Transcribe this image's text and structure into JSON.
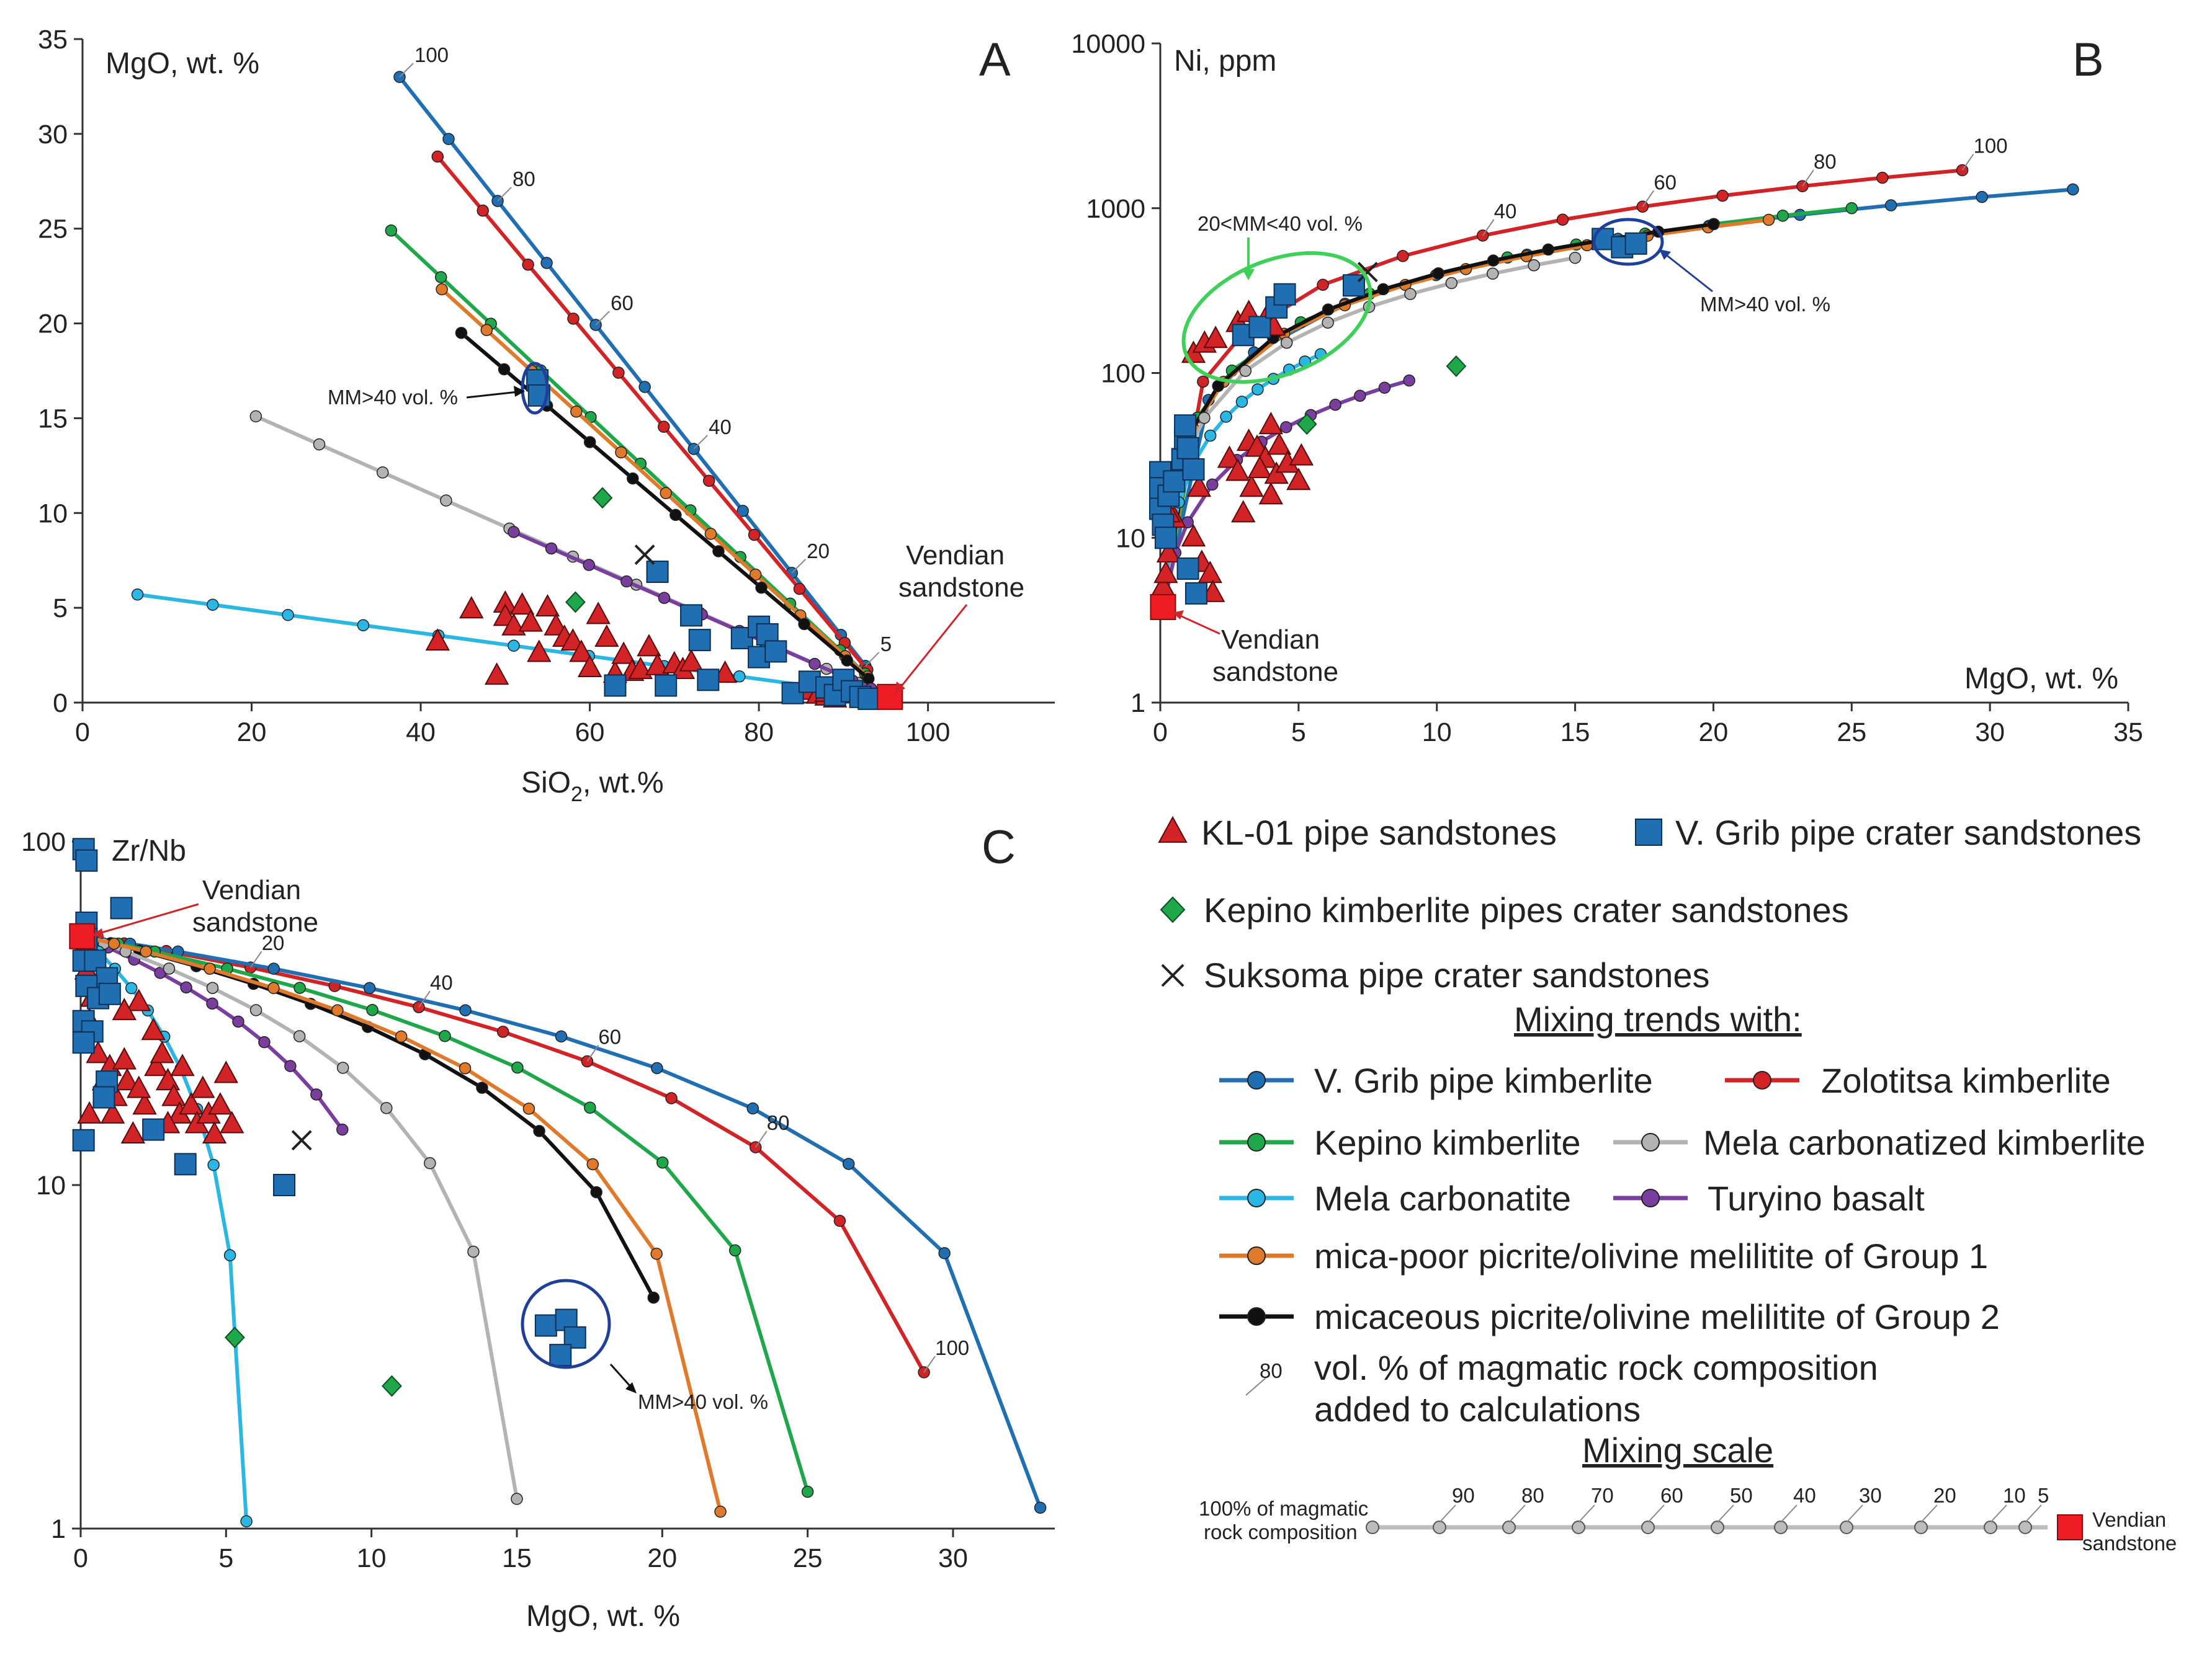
{
  "chart_data": [
    {
      "id": "A",
      "type": "line",
      "panel_letter": "A",
      "corner_label": "MgO, wt. %",
      "xlabel": "SiO",
      "xlabel_sub": "2",
      "xlabel_tail": ", wt.%",
      "xlim": [
        0,
        115
      ],
      "ylim": [
        0,
        35
      ],
      "x_ticks": [
        "0",
        "20",
        "40",
        "60",
        "80",
        "100"
      ],
      "y_ticks": [
        "0",
        "5",
        "10",
        "15",
        "20",
        "25",
        "30",
        "35"
      ],
      "annotations": {
        "mm_label": "MM>40 vol. %",
        "vendian_1": "Vendian",
        "vendian_2": "sandstone"
      },
      "percent_labels": [
        "100",
        "80",
        "60",
        "40",
        "20",
        "5"
      ],
      "series": [
        {
          "name": "V. Grib pipe kimberlite",
          "color": "#1f6fb2",
          "start": [
            37.5,
            33.0
          ]
        },
        {
          "name": "Zolotitsa kimberlite",
          "color": "#d22327",
          "start": [
            42.0,
            28.8
          ]
        },
        {
          "name": "Kepino kimberlite",
          "color": "#1fa84a",
          "start": [
            36.5,
            24.9
          ]
        },
        {
          "name": "mica-poor picrite/olivine melilitite of Group 1",
          "color": "#e07a2a",
          "start": [
            42.5,
            21.8
          ]
        },
        {
          "name": "micaceous picrite/olivine melilitite of Group 2",
          "color": "#111111",
          "start": [
            44.8,
            19.5
          ]
        },
        {
          "name": "Mela carbonatized kimberlite",
          "color": "#b3b3b3",
          "start": [
            20.5,
            15.1
          ]
        },
        {
          "name": "Turyino basalt",
          "color": "#7a3e9e",
          "start": [
            51.0,
            9.0
          ]
        },
        {
          "name": "Mela carbonatite",
          "color": "#2bb7e6",
          "start": [
            6.5,
            5.7
          ]
        }
      ],
      "end_member": [
        95.5,
        0.3
      ],
      "samples": {
        "KL-01 pipe sandstones": [
          [
            42,
            3.2
          ],
          [
            46,
            4.9
          ],
          [
            49,
            1.4
          ],
          [
            50,
            5.2
          ],
          [
            50,
            4.5
          ],
          [
            51,
            4.0
          ],
          [
            52,
            5.1
          ],
          [
            53,
            4.2
          ],
          [
            54,
            2.6
          ],
          [
            55,
            5.0
          ],
          [
            56,
            4.0
          ],
          [
            57,
            3.4
          ],
          [
            58,
            3.2
          ],
          [
            59,
            2.6
          ],
          [
            60,
            1.8
          ],
          [
            61,
            4.6
          ],
          [
            62,
            3.4
          ],
          [
            63,
            1.5
          ],
          [
            64,
            2.5
          ],
          [
            65,
            1.6
          ],
          [
            66,
            1.7
          ],
          [
            67,
            2.9
          ],
          [
            68,
            1.9
          ],
          [
            70,
            2.0
          ],
          [
            71,
            1.7
          ],
          [
            72,
            2.1
          ],
          [
            76,
            1.5
          ],
          [
            86,
            0.6
          ],
          [
            87,
            0.4
          ],
          [
            88,
            0.3
          ],
          [
            88,
            0.5
          ],
          [
            89,
            0.2
          ]
        ],
        "V. Grib pipe crater sandstones": [
          [
            53.8,
            17.0
          ],
          [
            54.0,
            16.2
          ],
          [
            68,
            6.9
          ],
          [
            72,
            4.6
          ],
          [
            73,
            3.3
          ],
          [
            78,
            3.4
          ],
          [
            80,
            2.4
          ],
          [
            80,
            4.0
          ],
          [
            81,
            3.6
          ],
          [
            82,
            2.7
          ],
          [
            63,
            0.9
          ],
          [
            69,
            0.9
          ],
          [
            74,
            1.2
          ],
          [
            84,
            0.5
          ],
          [
            86,
            1.1
          ],
          [
            88,
            0.8
          ],
          [
            89,
            0.4
          ],
          [
            90,
            1.2
          ],
          [
            91,
            0.6
          ],
          [
            92,
            0.3
          ],
          [
            93,
            0.2
          ]
        ],
        "Kepino kimberlite pipes crater sandstones": [
          [
            61.5,
            10.8
          ],
          [
            58.3,
            5.3
          ]
        ],
        "Suksoma pipe crater sandstones": [
          [
            66.5,
            7.8
          ]
        ]
      }
    },
    {
      "id": "B",
      "type": "line",
      "panel_letter": "B",
      "corner_label": "Ni, ppm",
      "xlabel": "MgO, wt. %",
      "xlim": [
        0,
        35
      ],
      "ylim": [
        1,
        10000
      ],
      "yscale": "log",
      "x_ticks": [
        "0",
        "5",
        "10",
        "15",
        "20",
        "25",
        "30",
        "35"
      ],
      "y_ticks": [
        "1",
        "10",
        "100",
        "1000",
        "10000"
      ],
      "annotations": {
        "green_label": "20<MM<40 vol. %",
        "mm_label": "MM>40 vol. %",
        "vendian_1": "Vendian",
        "vendian_2": "sandstone"
      },
      "percent_labels": [
        "40",
        "60",
        "80",
        "100"
      ],
      "series": [
        {
          "name": "Zolotitsa kimberlite",
          "color": "#d22327",
          "end": [
            29.0,
            1700
          ]
        },
        {
          "name": "V. Grib pipe kimberlite",
          "color": "#1f6fb2",
          "end": [
            33.0,
            1300
          ]
        },
        {
          "name": "Kepino kimberlite",
          "color": "#1fa84a",
          "end": [
            25.0,
            1000
          ]
        },
        {
          "name": "mica-poor picrite/olivine melilitite of Group 1",
          "color": "#e07a2a",
          "end": [
            22.0,
            850
          ]
        },
        {
          "name": "micaceous picrite/olivine melilitite of Group 2",
          "color": "#111111",
          "end": [
            20.0,
            800
          ]
        },
        {
          "name": "Mela carbonatized kimberlite",
          "color": "#b3b3b3",
          "end": [
            15.0,
            500
          ]
        },
        {
          "name": "Mela carbonatite",
          "color": "#2bb7e6",
          "end": [
            5.8,
            130
          ]
        },
        {
          "name": "Turyino basalt",
          "color": "#7a3e9e",
          "end": [
            9.0,
            90
          ]
        }
      ],
      "end_member": [
        0.1,
        3.8
      ],
      "samples": {
        "KL-01 pipe sandstones": [
          [
            0.1,
            5
          ],
          [
            0.2,
            6
          ],
          [
            0.3,
            8
          ],
          [
            0.5,
            13
          ],
          [
            0.3,
            14
          ],
          [
            1.2,
            10
          ],
          [
            1.5,
            7
          ],
          [
            1.8,
            6
          ],
          [
            1.9,
            4.6
          ],
          [
            1.2,
            130
          ],
          [
            1.6,
            150
          ],
          [
            2.0,
            160
          ],
          [
            2.8,
            200
          ],
          [
            3.2,
            230
          ],
          [
            3.8,
            210
          ],
          [
            4.1,
            190
          ],
          [
            2.5,
            30
          ],
          [
            3.2,
            38
          ],
          [
            3.5,
            35
          ],
          [
            3.8,
            30
          ],
          [
            4.0,
            48
          ],
          [
            4.3,
            36
          ],
          [
            2.8,
            25
          ],
          [
            3.3,
            20
          ],
          [
            3.6,
            26
          ],
          [
            4.2,
            24
          ],
          [
            4.6,
            28
          ],
          [
            5.0,
            22
          ],
          [
            5.1,
            31
          ],
          [
            3.0,
            14
          ],
          [
            1.4,
            20
          ],
          [
            4.0,
            18
          ]
        ],
        "V. Grib pipe crater sandstones": [
          [
            0,
            25
          ],
          [
            0,
            20
          ],
          [
            0,
            15
          ],
          [
            0.1,
            12
          ],
          [
            0.2,
            10
          ],
          [
            0.3,
            18
          ],
          [
            0.5,
            22
          ],
          [
            0.8,
            30
          ],
          [
            0.9,
            40
          ],
          [
            0.9,
            48
          ],
          [
            1.0,
            35
          ],
          [
            1.2,
            26
          ],
          [
            1.0,
            6.5
          ],
          [
            1.3,
            4.6
          ],
          [
            3.0,
            170
          ],
          [
            3.6,
            190
          ],
          [
            4.2,
            250
          ],
          [
            4.5,
            300
          ],
          [
            7.0,
            340
          ],
          [
            16.0,
            650
          ],
          [
            16.7,
            580
          ],
          [
            17.2,
            610
          ]
        ],
        "Kepino kimberlite pipes crater sandstones": [
          [
            10.7,
            110
          ],
          [
            5.3,
            49
          ]
        ],
        "Suksoma pipe crater sandstones": [
          [
            7.5,
            410
          ]
        ]
      }
    },
    {
      "id": "C",
      "type": "line",
      "panel_letter": "C",
      "corner_label": "Zr/Nb",
      "xlabel": "MgO, wt. %",
      "xlim": [
        0,
        33.5
      ],
      "ylim": [
        1,
        100
      ],
      "yscale": "log",
      "x_ticks": [
        "0",
        "5",
        "10",
        "15",
        "20",
        "25",
        "30"
      ],
      "y_ticks": [
        "1",
        "10",
        "100"
      ],
      "annotations": {
        "mm_label": "MM>40 vol. %",
        "vendian_1": "Vendian",
        "vendian_2": "sandstone"
      },
      "percent_labels": [
        "20",
        "40",
        "60",
        "80",
        "100"
      ],
      "series": [
        {
          "name": "Zolotitsa kimberlite",
          "color": "#d22327",
          "end": [
            29.0,
            2.85
          ]
        },
        {
          "name": "V. Grib pipe kimberlite",
          "color": "#1f6fb2",
          "end": [
            33.0,
            1.15
          ]
        },
        {
          "name": "micaceous picrite/olivine melilitite of Group 2",
          "color": "#111111",
          "end": [
            19.7,
            4.7
          ]
        },
        {
          "name": "Turyino basalt",
          "color": "#7a3e9e",
          "end": [
            9.0,
            14.5
          ]
        },
        {
          "name": "Kepino kimberlite",
          "color": "#1fa84a",
          "end": [
            25.0,
            1.28
          ]
        },
        {
          "name": "Mela carbonatized kimberlite",
          "color": "#b3b3b3",
          "end": [
            15.0,
            1.22
          ]
        },
        {
          "name": "mica-poor picrite/olivine melilitite of Group 1",
          "color": "#e07a2a",
          "end": [
            22.0,
            1.12
          ]
        },
        {
          "name": "Mela carbonatite",
          "color": "#2bb7e6",
          "end": [
            5.7,
            1.05
          ]
        }
      ],
      "end_member": [
        0.05,
        53
      ],
      "samples": {
        "KL-01 pipe sandstones": [
          [
            0.2,
            42
          ],
          [
            0.4,
            35
          ],
          [
            0.3,
            30
          ],
          [
            0.6,
            24
          ],
          [
            0.8,
            20
          ],
          [
            1.0,
            22
          ],
          [
            1.2,
            18
          ],
          [
            1.5,
            23
          ],
          [
            1.6,
            20
          ],
          [
            1.8,
            14
          ],
          [
            2.0,
            34
          ],
          [
            1.5,
            32
          ],
          [
            2.2,
            17
          ],
          [
            2.6,
            22
          ],
          [
            2.8,
            24
          ],
          [
            3.0,
            20
          ],
          [
            3.2,
            18
          ],
          [
            3.4,
            16
          ],
          [
            3.5,
            22
          ],
          [
            3.8,
            17
          ],
          [
            4.0,
            15
          ],
          [
            4.2,
            19
          ],
          [
            4.4,
            16
          ],
          [
            4.6,
            14
          ],
          [
            4.8,
            17
          ],
          [
            5.0,
            21
          ],
          [
            5.2,
            15
          ],
          [
            2.5,
            28
          ],
          [
            1.1,
            16
          ],
          [
            2.0,
            19
          ],
          [
            3.0,
            15
          ],
          [
            0.3,
            16
          ]
        ],
        "V. Grib pipe crater sandstones": [
          [
            0.1,
            95
          ],
          [
            0.2,
            88
          ],
          [
            1.4,
            64
          ],
          [
            0.2,
            58
          ],
          [
            0.2,
            52
          ],
          [
            0.1,
            45
          ],
          [
            0.5,
            45
          ],
          [
            0.9,
            40
          ],
          [
            0.2,
            38
          ],
          [
            0.6,
            35
          ],
          [
            1.0,
            36
          ],
          [
            0.1,
            30
          ],
          [
            0.4,
            28
          ],
          [
            0.1,
            26
          ],
          [
            0.9,
            20
          ],
          [
            0.8,
            18
          ],
          [
            0.1,
            13.5
          ],
          [
            2.5,
            14.5
          ],
          [
            3.6,
            11.5
          ],
          [
            7.0,
            10.0
          ],
          [
            16.0,
            3.9
          ],
          [
            16.7,
            4.05
          ],
          [
            17.0,
            3.6
          ],
          [
            16.5,
            3.2
          ]
        ],
        "Kepino kimberlite pipes crater sandstones": [
          [
            5.3,
            3.6
          ],
          [
            10.7,
            2.6
          ]
        ],
        "Suksoma pipe crater sandstones": [
          [
            7.6,
            13.5
          ]
        ]
      }
    }
  ],
  "legend": {
    "markers": [
      {
        "label": "KL-01 pipe sandstones",
        "shape": "triangle",
        "color": "#d22327"
      },
      {
        "label": "V. Grib pipe crater sandstones",
        "shape": "square",
        "color": "#1f6fb2"
      },
      {
        "label": "Kepino kimberlite pipes crater sandstones",
        "shape": "diamond",
        "color": "#1fa84a"
      },
      {
        "label": "Suksoma pipe crater sandstones",
        "shape": "cross",
        "color": "#222222"
      }
    ],
    "heading": "Mixing trends with:",
    "lines": [
      {
        "label": "V. Grib pipe kimberlite",
        "color": "#1f6fb2"
      },
      {
        "label": "Zolotitsa kimberlite",
        "color": "#d22327"
      },
      {
        "label": "Kepino kimberlite",
        "color": "#1fa84a"
      },
      {
        "label": "Mela carbonatized kimberlite",
        "color": "#b3b3b3"
      },
      {
        "label": "Mela carbonatite",
        "color": "#2bb7e6"
      },
      {
        "label": "Turyino basalt",
        "color": "#7a3e9e"
      },
      {
        "label": "mica-poor picrite/olivine melilitite of Group 1",
        "color": "#e07a2a"
      },
      {
        "label": "micaceous picrite/olivine melilitite of Group 2",
        "color": "#111111"
      }
    ],
    "pct_sample": "80",
    "pct_text_1": "vol. % of magmatic rock composition",
    "pct_text_2": "added to calculations",
    "scale_heading": "Mixing scale",
    "scale_left_1": "100% of magmatic",
    "scale_left_2": "rock composition",
    "scale_right_1": "Vendian",
    "scale_right_2": "sandstone",
    "scale_labels": [
      "90",
      "80",
      "70",
      "60",
      "50",
      "40",
      "30",
      "20",
      "10",
      "5"
    ]
  }
}
